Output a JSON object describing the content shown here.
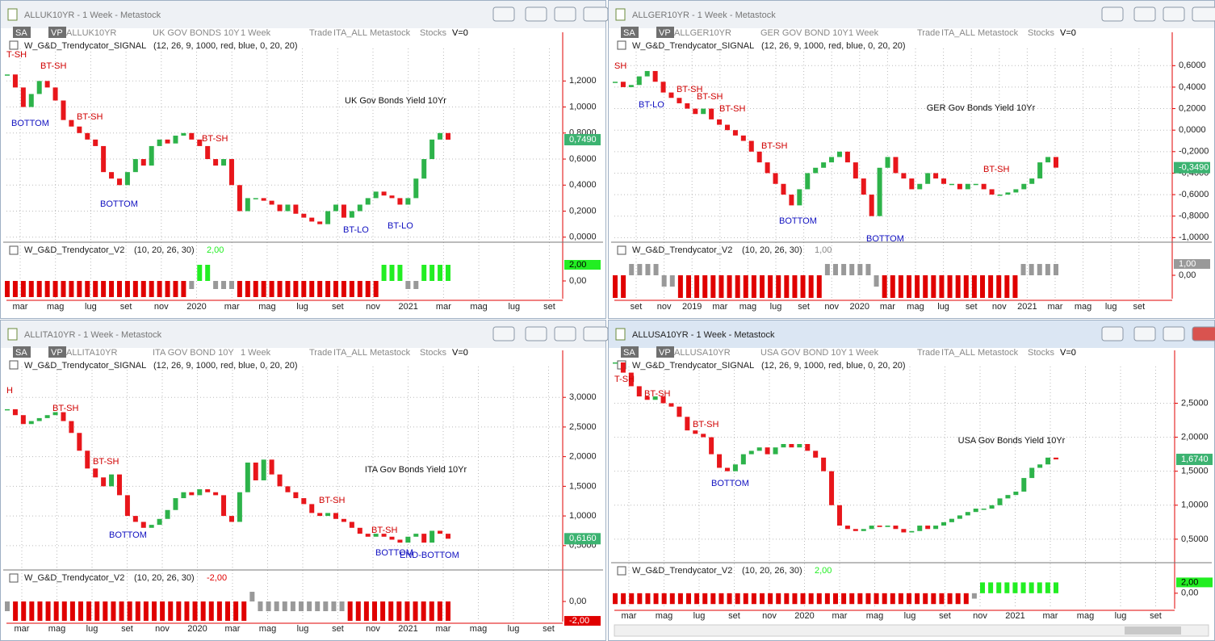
{
  "windows": [
    {
      "title": "ALLUK10YR - 1 Week - Metastock",
      "toolbar": [
        "SA",
        "VP",
        "ALLUK10YR",
        "UK GOV BONDS 10Y",
        "1 Week",
        "Trade",
        "ITA_ALL",
        "Metastock",
        "Stocks",
        "V=0"
      ],
      "signal_name": "W_G&D_Trendycator_SIGNAL",
      "signal_params": "(12, 26, 9, 1000, red, blue, 0, 20, 20)"
    },
    {
      "title": "ALLGER10YR - 1 Week - Metastock",
      "toolbar": [
        "SA",
        "VP",
        "ALLGER10YR",
        "GER GOV BOND 10Y",
        "1 Week",
        "Trade",
        "ITA_ALL",
        "Metastock",
        "Stocks",
        "V=0"
      ],
      "signal_name": "W_G&D_Trendycator_SIGNAL",
      "signal_params": "(12, 26, 9, 1000, red, blue, 0, 20, 20)"
    },
    {
      "title": "ALLITA10YR - 1 Week - Metastock",
      "toolbar": [
        "SA",
        "VP",
        "ALLITA10YR",
        "ITA GOV BOND 10Y",
        "1 Week",
        "Trade",
        "ITA_ALL",
        "Metastock",
        "Stocks",
        "V=0"
      ],
      "signal_name": "W_G&D_Trendycator_SIGNAL",
      "signal_params": "(12, 26, 9, 1000, red, blue, 0, 20, 20)"
    },
    {
      "title": "ALLUSA10YR - 1 Week - Metastock",
      "toolbar": [
        "SA",
        "VP",
        "ALLUSA10YR",
        "USA GOV BOND 10Y",
        "1 Week",
        "Trade",
        "ITA_ALL",
        "Metastock",
        "Stocks",
        "V=0"
      ],
      "signal_name": "W_G&D_Trendycator_SIGNAL",
      "signal_params": "(12, 26, 9, 1000, red, blue, 0, 20, 20)"
    }
  ],
  "chart_data": [
    {
      "type": "candlestick",
      "title": "UK Gov Bonds Yield 10Yr",
      "up_color": "#2db34a",
      "down_color": "#e8161b",
      "grid": true,
      "values": [
        1.25,
        1.15,
        1.0,
        1.1,
        1.2,
        1.15,
        1.05,
        0.9,
        0.85,
        0.8,
        0.75,
        0.7,
        0.5,
        0.45,
        0.4,
        0.5,
        0.6,
        0.55,
        0.7,
        0.75,
        0.72,
        0.78,
        0.8,
        0.75,
        0.7,
        0.6,
        0.55,
        0.6,
        0.4,
        0.2,
        0.3,
        0.3,
        0.28,
        0.25,
        0.2,
        0.25,
        0.18,
        0.15,
        0.12,
        0.1,
        0.2,
        0.25,
        0.15,
        0.2,
        0.25,
        0.3,
        0.35,
        0.32,
        0.3,
        0.25,
        0.3,
        0.45,
        0.6,
        0.75,
        0.8,
        0.749
      ],
      "ylim": [
        -0.02,
        1.45
      ],
      "yticks": [
        {
          "value": 1.2,
          "label": "1,2000"
        },
        {
          "value": 1.0,
          "label": "1,0000"
        },
        {
          "value": 0.8,
          "label": "0,8000"
        },
        {
          "value": 0.6,
          "label": "0,6000"
        },
        {
          "value": 0.4,
          "label": "0,4000"
        },
        {
          "value": 0.2,
          "label": "0,2000"
        },
        {
          "value": 0,
          "label": "0,0000"
        }
      ],
      "last": {
        "value": 0.749,
        "label": "0,7490"
      },
      "annotations": [
        "T-SH",
        "BT-SH",
        "BOTTOM",
        "BT-SH",
        "BT-SH",
        "BOTTOM",
        "BT-LO",
        "BT-LO"
      ],
      "x_labels": [
        "mar",
        "mag",
        "lug",
        "set",
        "nov",
        "2020",
        "mar",
        "mag",
        "lug",
        "set",
        "nov",
        "2021",
        "mar",
        "mag",
        "lug",
        "set"
      ],
      "indicator": {
        "type": "bar",
        "name": "W_G&D_Trendycator_V2",
        "params": "(10, 20, 26, 30)",
        "values": [
          -2,
          -2,
          -2,
          -2,
          -2,
          -2,
          -2,
          -2,
          -2,
          -2,
          -2,
          -2,
          -2,
          -2,
          -2,
          -2,
          -2,
          -2,
          -2,
          -2,
          -2,
          -2,
          -2,
          -1,
          2,
          2,
          -1,
          -1,
          -1,
          -2,
          -2,
          -2,
          -2,
          -2,
          -2,
          -2,
          -2,
          -2,
          -2,
          -2,
          -2,
          -2,
          -2,
          -2,
          -2,
          -2,
          -2,
          2,
          2,
          2,
          -1,
          -1,
          2,
          2,
          2,
          2
        ],
        "colors": {
          "2": "#22ee22",
          "1": "#999999",
          "-1": "#999999",
          "-2": "#e00000"
        },
        "ylim": [
          -2.2,
          3.0
        ],
        "yticks": [
          {
            "value": 0,
            "label": "0,00"
          }
        ],
        "last": {
          "value": 2,
          "label": "2,00"
        }
      }
    },
    {
      "type": "candlestick",
      "title": "GER Gov Bonds Yield 10Yr",
      "up_color": "#2db34a",
      "down_color": "#e8161b",
      "grid": true,
      "values": [
        0.45,
        0.4,
        0.42,
        0.5,
        0.55,
        0.45,
        0.35,
        0.3,
        0.25,
        0.2,
        0.15,
        0.2,
        0.1,
        0.05,
        0.0,
        -0.05,
        -0.1,
        -0.2,
        -0.3,
        -0.4,
        -0.5,
        -0.6,
        -0.7,
        -0.55,
        -0.4,
        -0.35,
        -0.3,
        -0.25,
        -0.2,
        -0.3,
        -0.45,
        -0.6,
        -0.8,
        -0.35,
        -0.25,
        -0.4,
        -0.45,
        -0.55,
        -0.5,
        -0.4,
        -0.45,
        -0.5,
        -0.5,
        -0.55,
        -0.5,
        -0.5,
        -0.55,
        -0.6,
        -0.6,
        -0.58,
        -0.55,
        -0.5,
        -0.45,
        -0.3,
        -0.25,
        -0.349
      ],
      "ylim": [
        -1.02,
        0.76
      ],
      "yticks": [
        {
          "value": 0.6,
          "label": "0,6000"
        },
        {
          "value": 0.4,
          "label": "0,4000"
        },
        {
          "value": 0.2,
          "label": "0,2000"
        },
        {
          "value": 0,
          "label": "0,0000"
        },
        {
          "value": -0.2,
          "label": "-0,2000"
        },
        {
          "value": -0.4,
          "label": "-0,4000"
        },
        {
          "value": -0.6,
          "label": "-0,6000"
        },
        {
          "value": -0.8,
          "label": "-0,8000"
        },
        {
          "value": -1.0,
          "label": "-1,0000"
        }
      ],
      "last": {
        "value": -0.349,
        "label": "-0,3490"
      },
      "annotations": [
        "SH",
        "BT-LO",
        "BT-SH",
        "BT-SH",
        "BT-SH",
        "BT-SH",
        "BT-SH",
        "BOTTOM",
        "BOTTOM"
      ],
      "x_labels": [
        "set",
        "nov",
        "2019",
        "mar",
        "mag",
        "lug",
        "set",
        "nov",
        "2020",
        "mar",
        "mag",
        "lug",
        "set",
        "nov",
        "2021",
        "mar",
        "mag",
        "lug",
        "set"
      ],
      "indicator": {
        "type": "bar",
        "name": "W_G&D_Trendycator_V2",
        "params": "(10, 20, 26, 30)",
        "values": [
          -2,
          -2,
          1,
          1,
          1,
          1,
          -1,
          -1,
          -2,
          -2,
          -2,
          -2,
          -2,
          -2,
          -2,
          -2,
          -2,
          -2,
          -2,
          -2,
          -2,
          -2,
          -2,
          -2,
          -2,
          -2,
          1,
          1,
          1,
          1,
          1,
          1,
          -1,
          -2,
          -2,
          -2,
          -2,
          -2,
          -2,
          -2,
          -2,
          -2,
          -2,
          -2,
          -2,
          -2,
          -2,
          -2,
          -2,
          -2,
          1,
          1,
          1,
          1,
          1
        ],
        "colors": {
          "2": "#22ee22",
          "1": "#999999",
          "-1": "#999999",
          "-2": "#e00000"
        },
        "ylim": [
          -2.07,
          1.64
        ],
        "yticks": [
          {
            "value": 0,
            "label": "0,00"
          }
        ],
        "last": {
          "value": 1,
          "label": "1,00"
        }
      }
    },
    {
      "type": "candlestick",
      "title": "ITA Gov Bonds Yield 10Yr",
      "up_color": "#2db34a",
      "down_color": "#e8161b",
      "grid": true,
      "values": [
        2.8,
        2.7,
        2.55,
        2.6,
        2.65,
        2.7,
        2.75,
        2.6,
        2.4,
        2.1,
        1.8,
        1.65,
        1.5,
        1.7,
        1.35,
        1.0,
        0.9,
        0.8,
        0.85,
        0.95,
        1.1,
        1.3,
        1.4,
        1.35,
        1.45,
        1.4,
        1.35,
        1.0,
        0.9,
        1.4,
        1.9,
        1.6,
        1.95,
        1.7,
        1.5,
        1.4,
        1.3,
        1.2,
        1.05,
        1.0,
        1.05,
        0.95,
        0.9,
        0.8,
        0.7,
        0.65,
        0.7,
        0.65,
        0.6,
        0.55,
        0.65,
        0.7,
        0.55,
        0.75,
        0.7,
        0.616
      ],
      "ylim": [
        0.13,
        3.52
      ],
      "yticks": [
        {
          "value": 3.0,
          "label": "3,0000"
        },
        {
          "value": 2.5,
          "label": "2,5000"
        },
        {
          "value": 2.0,
          "label": "2,0000"
        },
        {
          "value": 1.5,
          "label": "1,5000"
        },
        {
          "value": 1.0,
          "label": "1,0000"
        },
        {
          "value": 0.5,
          "label": "0,5000"
        }
      ],
      "last": {
        "value": 0.616,
        "label": "0,6160"
      },
      "annotations": [
        "H",
        "BT-SH",
        "BT-SH",
        "BOTTOM",
        "BT-SH",
        "BT-SH",
        "BOTTOM",
        "END-BOTTOM"
      ],
      "x_labels": [
        "mar",
        "mag",
        "lug",
        "set",
        "nov",
        "2020",
        "mar",
        "mag",
        "lug",
        "set",
        "nov",
        "2021",
        "mar",
        "mag",
        "lug",
        "set"
      ],
      "indicator": {
        "type": "bar",
        "name": "W_G&D_Trendycator_V2",
        "params": "(10, 20, 26, 30)",
        "values": [
          -1,
          -2,
          -2,
          -2,
          -2,
          -2,
          -2,
          -2,
          -2,
          -2,
          -2,
          -2,
          -2,
          -2,
          -2,
          -2,
          -2,
          -2,
          -2,
          -2,
          -2,
          -2,
          -2,
          -2,
          -2,
          -2,
          -2,
          -2,
          -2,
          -2,
          1,
          -1,
          -1,
          -1,
          -1,
          -1,
          -1,
          -1,
          -1,
          -1,
          -1,
          -1,
          -2,
          -2,
          -2,
          -2,
          -2,
          -2,
          -2,
          -2,
          -2,
          -2,
          -2,
          -2,
          -2
        ],
        "colors": {
          "2": "#22ee22",
          "1": "#999999",
          "-1": "#999999",
          "-2": "#e00000"
        },
        "ylim": [
          -2.08,
          2.42
        ],
        "yticks": [
          {
            "value": 0,
            "label": "0,00"
          }
        ],
        "last": {
          "value": -2,
          "label": "-2,00"
        }
      }
    },
    {
      "type": "candlestick",
      "title": "USA Gov Bonds Yield 10Yr",
      "up_color": "#2db34a",
      "down_color": "#e8161b",
      "grid": true,
      "values": [
        3.1,
        2.95,
        2.75,
        2.6,
        2.55,
        2.6,
        2.5,
        2.45,
        2.3,
        2.1,
        2.05,
        2.0,
        1.75,
        1.55,
        1.5,
        1.6,
        1.75,
        1.8,
        1.85,
        1.75,
        1.85,
        1.9,
        1.85,
        1.9,
        1.8,
        1.7,
        1.5,
        1.0,
        0.7,
        0.65,
        0.62,
        0.65,
        0.7,
        0.68,
        0.7,
        0.65,
        0.6,
        0.62,
        0.7,
        0.65,
        0.7,
        0.75,
        0.8,
        0.85,
        0.9,
        0.95,
        0.95,
        1.0,
        1.1,
        1.15,
        1.2,
        1.4,
        1.55,
        1.6,
        1.7,
        1.674
      ],
      "ylim": [
        0.19,
        3.04
      ],
      "yticks": [
        {
          "value": 2.5,
          "label": "2,5000"
        },
        {
          "value": 2.0,
          "label": "2,0000"
        },
        {
          "value": 1.5,
          "label": "1,5000"
        },
        {
          "value": 1.0,
          "label": "1,0000"
        },
        {
          "value": 0.5,
          "label": "0,5000"
        }
      ],
      "last": {
        "value": 1.674,
        "label": "1,6740"
      },
      "annotations": [
        "T-SH",
        "BT-SH",
        "BT-SH",
        "BOTTOM"
      ],
      "x_labels": [
        "mar",
        "mag",
        "lug",
        "set",
        "nov",
        "2020",
        "mar",
        "mag",
        "lug",
        "set",
        "nov",
        "2021",
        "mar",
        "mag",
        "lug",
        "set"
      ],
      "indicator": {
        "type": "bar",
        "name": "W_G&D_Trendycator_V2",
        "params": "(10, 20, 26, 30)",
        "values": [
          -2,
          -2,
          -2,
          -2,
          -2,
          -2,
          -2,
          -2,
          -2,
          -2,
          -2,
          -2,
          -2,
          -2,
          -2,
          -2,
          -2,
          -2,
          -2,
          -2,
          -2,
          -2,
          -2,
          -2,
          -2,
          -2,
          -2,
          -2,
          -2,
          -2,
          -2,
          -2,
          -2,
          -2,
          -2,
          -2,
          -2,
          -2,
          -2,
          -2,
          -2,
          -2,
          -2,
          -2,
          -1,
          2,
          2,
          2,
          2,
          2,
          2,
          2,
          2,
          2,
          2
        ],
        "colors": {
          "2": "#22ee22",
          "1": "#999999",
          "-1": "#999999",
          "-2": "#e00000"
        },
        "ylim": [
          -2.86,
          4
        ],
        "yticks": [
          {
            "value": 0,
            "label": "0,00"
          }
        ],
        "last": {
          "value": 2,
          "label": "2,00"
        }
      }
    }
  ]
}
